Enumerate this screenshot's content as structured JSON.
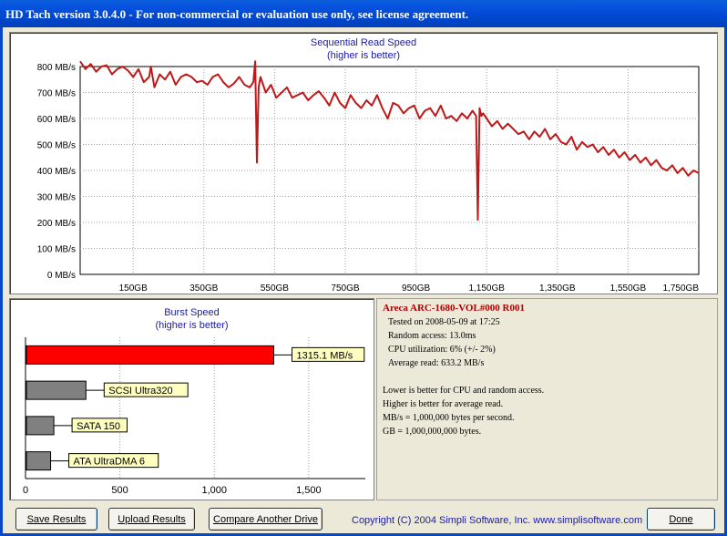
{
  "window": {
    "title": "HD Tach version 3.0.4.0  - For non-commercial or evaluation use only, see license agreement."
  },
  "colors": {
    "read_line": "#c01818",
    "burst_bar_this": "#ff0000",
    "burst_bar_other": "#808080",
    "label_bg": "#ffffc0",
    "title_blue": "#1a1aa8"
  },
  "sequential": {
    "title": "Sequential Read Speed",
    "subtitle": "(higher is better)"
  },
  "burst": {
    "title": "Burst Speed",
    "subtitle": "(higher is better)"
  },
  "chart_data": [
    {
      "type": "line",
      "title": "Sequential Read Speed",
      "subtitle": "(higher is better)",
      "unit_x": "GB",
      "unit_y": "MB/s",
      "ylim": [
        0,
        800
      ],
      "xlim": [
        0,
        1750
      ],
      "y_ticks": [
        "0 MB/s",
        "100 MB/s",
        "200 MB/s",
        "300 MB/s",
        "400 MB/s",
        "500 MB/s",
        "600 MB/s",
        "700 MB/s",
        "800 MB/s"
      ],
      "x_ticks": [
        "150GB",
        "350GB",
        "550GB",
        "750GB",
        "950GB",
        "1,150GB",
        "1,350GB",
        "1,550GB",
        "1,750GB"
      ],
      "grid": true,
      "series": [
        {
          "x": [
            0,
            15,
            30,
            45,
            60,
            75,
            90,
            105,
            120,
            135,
            150,
            165,
            180,
            195,
            200,
            210,
            225,
            240,
            255,
            270,
            285,
            300,
            315,
            330,
            345,
            360,
            375,
            390,
            405,
            420,
            435,
            450,
            465,
            480,
            490,
            495,
            500,
            505,
            510,
            525,
            540,
            555,
            570,
            585,
            600,
            615,
            630,
            645,
            660,
            675,
            690,
            705,
            720,
            735,
            750,
            765,
            780,
            795,
            810,
            825,
            840,
            855,
            870,
            885,
            900,
            915,
            930,
            945,
            960,
            975,
            990,
            1005,
            1020,
            1035,
            1050,
            1065,
            1080,
            1095,
            1110,
            1120,
            1125,
            1130,
            1135,
            1140,
            1150,
            1165,
            1180,
            1195,
            1210,
            1225,
            1240,
            1255,
            1270,
            1285,
            1300,
            1315,
            1330,
            1345,
            1360,
            1375,
            1390,
            1405,
            1420,
            1435,
            1450,
            1465,
            1480,
            1495,
            1510,
            1525,
            1540,
            1555,
            1570,
            1585,
            1600,
            1615,
            1630,
            1645,
            1660,
            1675,
            1690,
            1705,
            1720,
            1735,
            1750
          ],
          "y": [
            820,
            790,
            810,
            780,
            800,
            805,
            770,
            790,
            800,
            785,
            760,
            790,
            740,
            760,
            800,
            720,
            770,
            750,
            780,
            730,
            760,
            770,
            760,
            740,
            745,
            730,
            760,
            770,
            740,
            720,
            735,
            760,
            730,
            720,
            740,
            820,
            430,
            720,
            760,
            700,
            730,
            680,
            700,
            720,
            680,
            690,
            700,
            670,
            690,
            705,
            680,
            650,
            700,
            660,
            640,
            690,
            660,
            640,
            670,
            650,
            690,
            640,
            600,
            660,
            650,
            620,
            640,
            650,
            600,
            630,
            640,
            610,
            650,
            600,
            610,
            590,
            620,
            600,
            630,
            610,
            210,
            640,
            610,
            620,
            600,
            570,
            590,
            560,
            580,
            560,
            540,
            550,
            520,
            550,
            530,
            560,
            520,
            540,
            510,
            500,
            530,
            480,
            510,
            490,
            500,
            470,
            490,
            460,
            480,
            450,
            470,
            440,
            460,
            430,
            450,
            420,
            440,
            410,
            400,
            420,
            390,
            410,
            380,
            400,
            390
          ]
        }
      ]
    },
    {
      "type": "bar",
      "title": "Burst Speed",
      "subtitle": "(higher is better)",
      "orientation": "horizontal",
      "xlim": [
        0,
        1800
      ],
      "x_ticks": [
        "0",
        "500",
        "1,000",
        "1,500"
      ],
      "categories": [
        "1315.1 MB/s",
        "SCSI Ultra320",
        "SATA 150",
        "ATA UltraDMA 6"
      ],
      "values": [
        1315.1,
        320,
        150,
        133
      ],
      "highlight_index": 0
    }
  ],
  "info": {
    "drive_name": "Areca  ARC-1680-VOL#000 R001",
    "tested_on": "Tested on 2008-05-09 at 17:25",
    "random_access": "Random access: 13.0ms",
    "cpu_utilization": "CPU utilization: 6% (+/- 2%)",
    "average_read": "Average read: 633.2 MB/s",
    "note_1": "Lower is better for CPU and random access.",
    "note_2": "Higher is better for average read.",
    "note_3": "MB/s = 1,000,000 bytes per second.",
    "note_4": "GB = 1,000,000,000 bytes."
  },
  "buttons": {
    "save": "Save Results",
    "upload": "Upload Results",
    "compare": "Compare Another Drive",
    "done": "Done"
  },
  "footer": {
    "copyright": "Copyright (C) 2004 Simpli Software, Inc. www.simplisoftware.com"
  }
}
